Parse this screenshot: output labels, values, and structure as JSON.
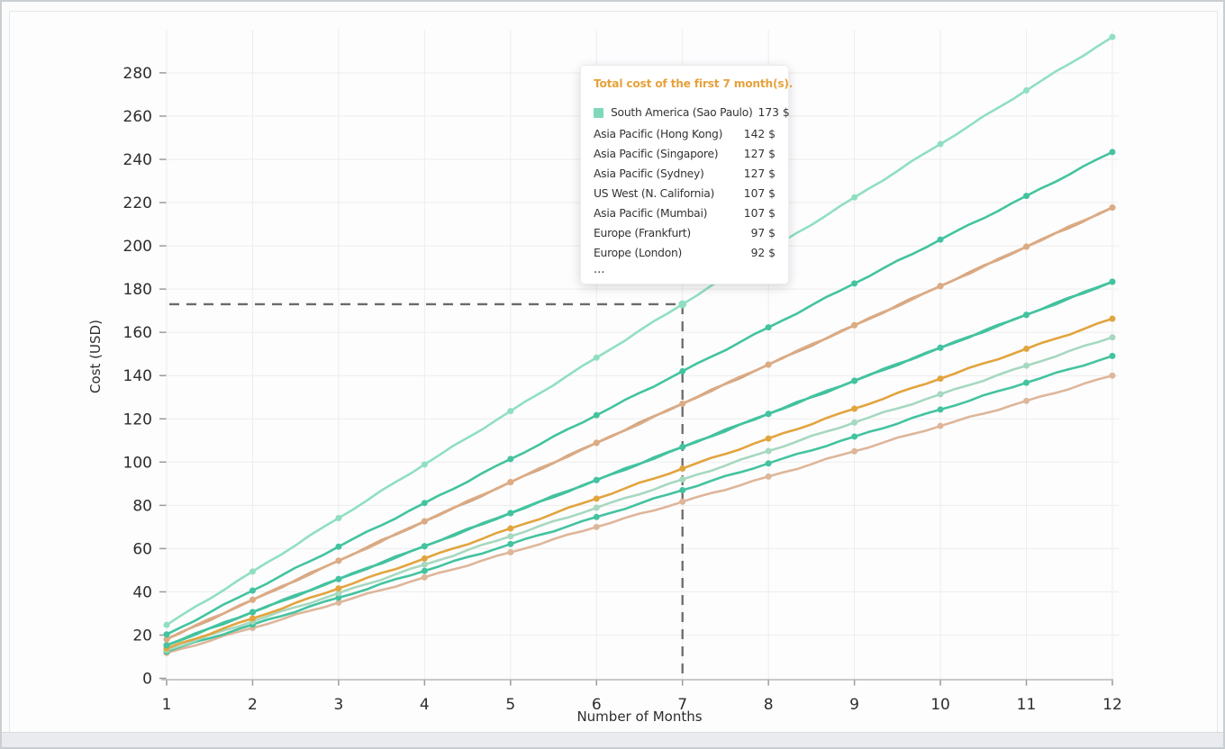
{
  "chart_data": {
    "type": "line",
    "title": "",
    "xlabel": "Number of Months",
    "ylabel": "Cost (USD)",
    "x": [
      1,
      2,
      3,
      4,
      5,
      6,
      7,
      8,
      9,
      10,
      11,
      12
    ],
    "yticks": [
      0,
      20,
      40,
      60,
      80,
      100,
      120,
      140,
      160,
      180,
      200,
      220,
      240,
      260,
      280
    ],
    "ylim": [
      0,
      300
    ],
    "xlim": [
      1,
      12
    ],
    "grid": true,
    "legend_position": "none",
    "series": [
      {
        "id": "south-america-sao-paulo",
        "label": "South America (Sao Paulo)",
        "color": "#90dfc1",
        "highlighted": true,
        "values": [
          24.7,
          49.4,
          74.1,
          98.9,
          123.6,
          148.3,
          173,
          197.7,
          222.4,
          247.1,
          271.9,
          296.6
        ]
      },
      {
        "id": "asia-pacific-hong-kong",
        "label": "Asia Pacific (Hong Kong)",
        "color": "#43c39f",
        "values": [
          20.3,
          40.6,
          60.9,
          81.1,
          101.4,
          121.7,
          142,
          162.3,
          182.6,
          202.9,
          223.1,
          243.4
        ]
      },
      {
        "id": "asia-pacific-singapore",
        "label": "Asia Pacific (Singapore)",
        "color": "#dcab84",
        "values": [
          18.1,
          36.3,
          54.4,
          72.6,
          90.7,
          108.9,
          127,
          145.1,
          163.3,
          181.4,
          199.6,
          217.7
        ]
      },
      {
        "id": "asia-pacific-sydney",
        "label": "Asia Pacific (Sydney)",
        "color": "#d2a37e",
        "values": [
          18.1,
          36.3,
          54.4,
          72.6,
          90.7,
          108.9,
          127,
          145.1,
          163.3,
          181.4,
          199.6,
          217.7
        ]
      },
      {
        "id": "us-west-n-california",
        "label": "US West (N. California)",
        "color": "#43c39f",
        "values": [
          15.3,
          30.6,
          45.9,
          61.1,
          76.4,
          91.7,
          107,
          122.3,
          137.6,
          152.9,
          168.1,
          183.4
        ]
      },
      {
        "id": "asia-pacific-mumbai",
        "label": "Asia Pacific (Mumbai)",
        "color": "#41bf9b",
        "values": [
          15.3,
          30.6,
          45.9,
          61.1,
          76.4,
          91.7,
          107,
          122.3,
          137.6,
          152.9,
          168.1,
          183.4
        ]
      },
      {
        "id": "europe-frankfurt",
        "label": "Europe (Frankfurt)",
        "color": "#e2a43e",
        "values": [
          13.9,
          27.7,
          41.6,
          55.4,
          69.3,
          83.1,
          97,
          110.9,
          124.7,
          138.6,
          152.4,
          166.3
        ]
      },
      {
        "id": "europe-london",
        "label": "Europe (London)",
        "color": "#a7d8c0",
        "values": [
          13.1,
          26.3,
          39.4,
          52.6,
          65.7,
          78.9,
          92,
          105.1,
          118.3,
          131.4,
          144.6,
          157.7
        ]
      },
      {
        "id": "unlabeled-1",
        "label": null,
        "color": "#43c39f",
        "values": [
          12.4,
          24.9,
          37.3,
          49.7,
          62.1,
          74.6,
          87,
          99.4,
          111.8,
          124.3,
          136.7,
          149.1
        ]
      },
      {
        "id": "unlabeled-2",
        "label": null,
        "color": "#deb69a",
        "values": [
          11.7,
          23.3,
          35,
          46.7,
          58.3,
          70,
          81.7,
          93.3,
          105,
          116.7,
          128.3,
          140
        ]
      }
    ]
  },
  "crosshair": {
    "month": 7,
    "value": 173
  },
  "tooltip": {
    "title": "Total cost of the first 7 month(s).",
    "rows": [
      {
        "label": "South America (Sao Paulo)",
        "value": "173 $",
        "swatch": "#7fd8b9"
      },
      {
        "label": "Asia Pacific (Hong Kong)",
        "value": "142 $"
      },
      {
        "label": "Asia Pacific (Singapore)",
        "value": "127 $"
      },
      {
        "label": "Asia Pacific (Sydney)",
        "value": "127 $"
      },
      {
        "label": "US West (N. California)",
        "value": "107 $"
      },
      {
        "label": "Asia Pacific (Mumbai)",
        "value": "107 $"
      },
      {
        "label": "Europe (Frankfurt)",
        "value": "97 $"
      },
      {
        "label": "Europe (London)",
        "value": "92 $"
      }
    ],
    "ellipsis": "..."
  }
}
